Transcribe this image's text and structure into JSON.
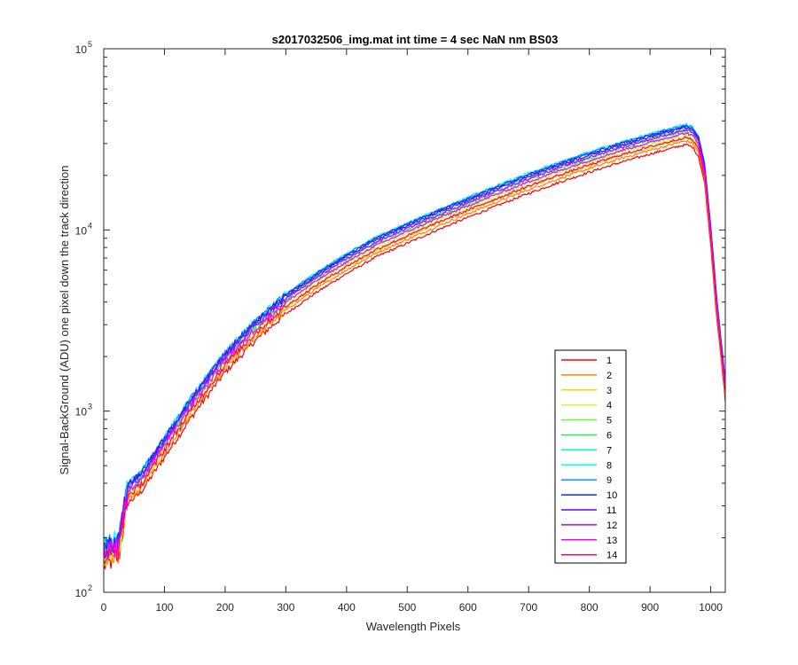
{
  "chart_data": {
    "type": "line",
    "title": "s2017032506_img.mat int time = 4 sec  NaN nm BS03",
    "xlabel": "Wavelength Pixels",
    "ylabel": "Signal-BackGround (ADU) one pixel down the track direction",
    "xlim": [
      0,
      1024
    ],
    "ylim": [
      100,
      100000
    ],
    "yscale": "log",
    "grid": false,
    "legend_position": "lower-right",
    "x_ticks": [
      "0",
      "100",
      "200",
      "300",
      "400",
      "500",
      "600",
      "700",
      "800",
      "900",
      "1000"
    ],
    "x_tick_values": [
      0,
      100,
      200,
      300,
      400,
      500,
      600,
      700,
      800,
      900,
      1000
    ],
    "y_ticks": [
      {
        "base": "10",
        "exp": "2",
        "value": 100
      },
      {
        "base": "10",
        "exp": "3",
        "value": 1000
      },
      {
        "base": "10",
        "exp": "4",
        "value": 10000
      },
      {
        "base": "10",
        "exp": "5",
        "value": 100000
      }
    ],
    "profile": {
      "x": [
        0,
        25,
        30,
        40,
        60,
        100,
        150,
        200,
        250,
        300,
        350,
        400,
        450,
        500,
        550,
        600,
        650,
        700,
        750,
        800,
        850,
        900,
        930,
        950,
        960,
        970,
        980,
        990,
        1000,
        1010,
        1024
      ],
      "y": [
        170,
        190,
        250,
        380,
        430,
        680,
        1200,
        2000,
        3000,
        4200,
        5500,
        7000,
        8700,
        10300,
        12200,
        14300,
        16700,
        19400,
        22300,
        25400,
        28700,
        32000,
        34000,
        35500,
        36000,
        35000,
        31000,
        22000,
        10000,
        4000,
        1400
      ]
    },
    "series": [
      {
        "name": "1",
        "color": "#ff0000",
        "scale": 0.82
      },
      {
        "name": "2",
        "color": "#ff7f00",
        "scale": 0.86
      },
      {
        "name": "3",
        "color": "#ffd200",
        "scale": 0.89
      },
      {
        "name": "4",
        "color": "#ccff33",
        "scale": 0.92
      },
      {
        "name": "5",
        "color": "#66ff33",
        "scale": 0.95
      },
      {
        "name": "6",
        "color": "#22ee55",
        "scale": 0.98
      },
      {
        "name": "7",
        "color": "#00ffaa",
        "scale": 1.01
      },
      {
        "name": "8",
        "color": "#00ffff",
        "scale": 1.06
      },
      {
        "name": "9",
        "color": "#0099ff",
        "scale": 1.05
      },
      {
        "name": "10",
        "color": "#0033ff",
        "scale": 1.04
      },
      {
        "name": "11",
        "color": "#6600ff",
        "scale": 1.02
      },
      {
        "name": "12",
        "color": "#bb00ff",
        "scale": 0.99
      },
      {
        "name": "13",
        "color": "#ff00ff",
        "scale": 0.95
      },
      {
        "name": "14",
        "color": "#ff0066",
        "scale": 0.9
      }
    ]
  }
}
